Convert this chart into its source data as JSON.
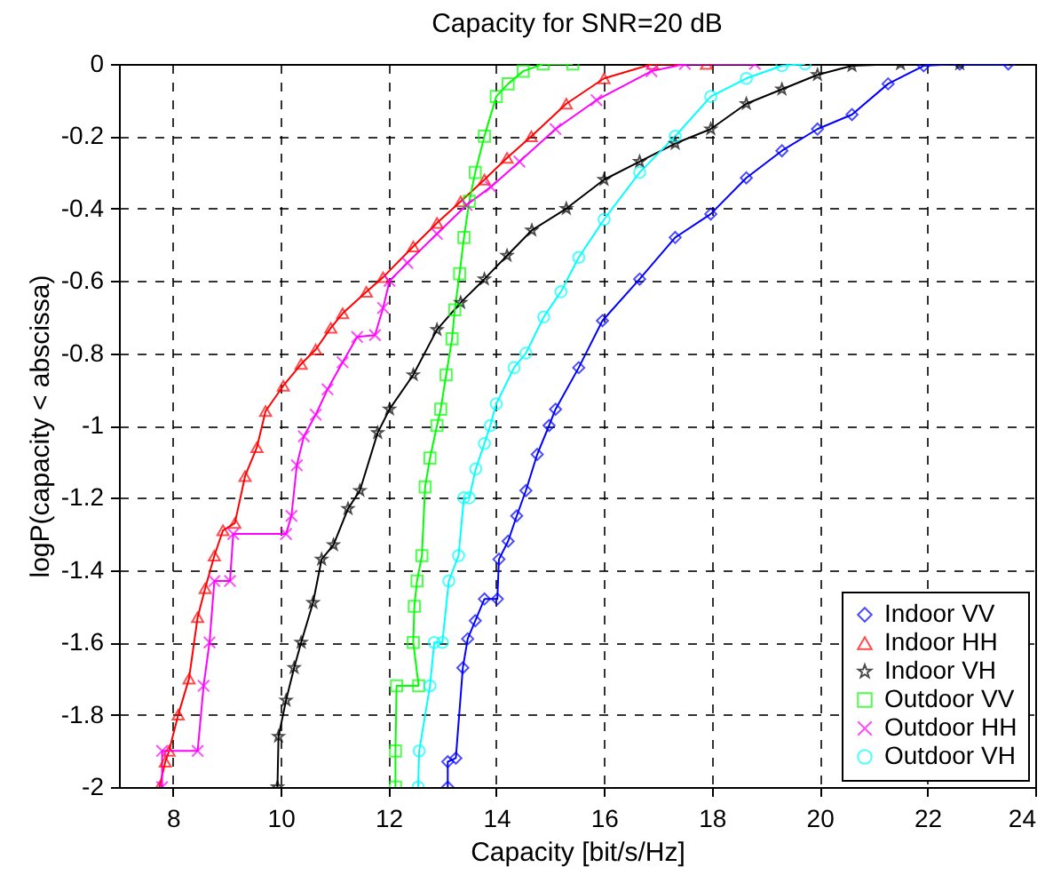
{
  "chart_data": {
    "type": "line",
    "title": "Capacity for SNR=20 dB",
    "xlabel": "Capacity [bit/s/Hz]",
    "ylabel": "logP(capacity < abscissa)",
    "xlim": [
      7,
      24
    ],
    "ylim": [
      -2,
      0
    ],
    "xticks": [
      8,
      10,
      12,
      14,
      16,
      18,
      20,
      22,
      24
    ],
    "yticks": [
      -2,
      -1.8,
      -1.6,
      -1.4,
      -1.2,
      -1,
      -0.8,
      -0.6,
      -0.4,
      -0.2,
      0
    ],
    "grid": true,
    "legend": "bottom right",
    "line_style": "solid",
    "series": [
      {
        "name": "Indoor VV",
        "color": "#0000ff",
        "marker": "diamond",
        "x": [
          13.1,
          13.1,
          13.25,
          13.38,
          13.47,
          13.61,
          13.78,
          14.02,
          14.05,
          14.22,
          14.38,
          14.55,
          14.76,
          14.98,
          15.1,
          15.53,
          15.97,
          16.66,
          17.32,
          17.98,
          18.64,
          19.3,
          19.96,
          20.6,
          21.27,
          21.93,
          22.6,
          23.5
        ],
        "values": [
          -2,
          -1.93,
          -1.92,
          -1.67,
          -1.59,
          -1.54,
          -1.48,
          -1.48,
          -1.37,
          -1.32,
          -1.25,
          -1.18,
          -1.08,
          -1.0,
          -0.955,
          -0.84,
          -0.71,
          -0.595,
          -0.48,
          -0.415,
          -0.315,
          -0.24,
          -0.18,
          -0.14,
          -0.055,
          -0.005,
          0,
          0
        ]
      },
      {
        "name": " Indoor HH",
        "color": "#ff0000",
        "marker": "triangle",
        "x": [
          7.75,
          7.86,
          7.93,
          8.1,
          8.3,
          8.46,
          8.6,
          8.77,
          8.93,
          9.15,
          9.34,
          9.56,
          9.72,
          10.05,
          10.38,
          10.65,
          10.93,
          11.15,
          11.59,
          11.9,
          12.46,
          12.9,
          13.34,
          13.78,
          14.2,
          14.65,
          15.3,
          16.0,
          16.9,
          17.9
        ],
        "values": [
          -2,
          -1.93,
          -1.9,
          -1.8,
          -1.7,
          -1.53,
          -1.45,
          -1.36,
          -1.29,
          -1.27,
          -1.14,
          -1.06,
          -0.96,
          -0.89,
          -0.83,
          -0.79,
          -0.73,
          -0.69,
          -0.63,
          -0.59,
          -0.505,
          -0.44,
          -0.38,
          -0.32,
          -0.26,
          -0.2,
          -0.11,
          -0.04,
          0,
          0
        ]
      },
      {
        "name": "Indoor VH",
        "color": "#000000",
        "marker": "star",
        "x": [
          9.94,
          9.96,
          10.1,
          10.25,
          10.38,
          10.6,
          10.76,
          10.98,
          11.25,
          11.47,
          11.8,
          12.02,
          12.46,
          12.9,
          13.34,
          13.78,
          14.2,
          14.66,
          15.3,
          16.0,
          16.66,
          17.32,
          17.98,
          18.64,
          19.3,
          19.96,
          20.6,
          21.5,
          22.6
        ],
        "values": [
          -2,
          -1.86,
          -1.76,
          -1.67,
          -1.6,
          -1.49,
          -1.37,
          -1.33,
          -1.23,
          -1.18,
          -1.02,
          -0.955,
          -0.86,
          -0.735,
          -0.66,
          -0.595,
          -0.53,
          -0.46,
          -0.4,
          -0.32,
          -0.27,
          -0.22,
          -0.18,
          -0.11,
          -0.07,
          -0.03,
          -0.005,
          0,
          0
        ]
      },
      {
        "name": "Outdoor VV",
        "color": "#00ff00",
        "marker": "square",
        "x": [
          12.13,
          12.13,
          12.15,
          12.56,
          12.46,
          12.48,
          12.53,
          12.62,
          12.68,
          12.77,
          12.9,
          12.97,
          13.07,
          13.18,
          13.23,
          13.32,
          13.4,
          13.5,
          13.61,
          13.78,
          14.0,
          14.22,
          14.5,
          14.87,
          15.42
        ],
        "values": [
          -2,
          -1.9,
          -1.72,
          -1.72,
          -1.6,
          -1.5,
          -1.43,
          -1.36,
          -1.17,
          -1.09,
          -1.0,
          -0.955,
          -0.86,
          -0.76,
          -0.68,
          -0.58,
          -0.48,
          -0.38,
          -0.3,
          -0.2,
          -0.09,
          -0.055,
          -0.02,
          0,
          0
        ]
      },
      {
        "name": "Outdoor HH",
        "color": "#ff00ff",
        "marker": "cross",
        "x": [
          7.8,
          7.8,
          8.46,
          8.57,
          8.68,
          8.77,
          9.06,
          9.12,
          10.1,
          10.2,
          10.3,
          10.43,
          10.65,
          10.87,
          11.15,
          11.42,
          11.75,
          11.9,
          12.02,
          12.35,
          12.9,
          13.45,
          13.9,
          14.43,
          15.1,
          15.86,
          16.88,
          17.5,
          18.8
        ],
        "values": [
          -2,
          -1.9,
          -1.9,
          -1.72,
          -1.6,
          -1.43,
          -1.43,
          -1.3,
          -1.3,
          -1.25,
          -1.11,
          -1.03,
          -0.97,
          -0.9,
          -0.825,
          -0.755,
          -0.75,
          -0.675,
          -0.6,
          -0.55,
          -0.47,
          -0.39,
          -0.34,
          -0.27,
          -0.18,
          -0.1,
          -0.02,
          0,
          0
        ]
      },
      {
        "name": "Outdoor VH",
        "color": "#00ffff",
        "marker": "circle",
        "x": [
          12.55,
          12.57,
          12.77,
          12.85,
          13.0,
          13.12,
          13.3,
          13.4,
          13.5,
          13.62,
          13.78,
          13.89,
          14.0,
          14.33,
          14.55,
          14.88,
          15.2,
          15.53,
          16.0,
          16.66,
          17.32,
          17.98,
          18.64,
          19.3,
          19.73
        ],
        "values": [
          -2,
          -1.9,
          -1.72,
          -1.6,
          -1.6,
          -1.43,
          -1.36,
          -1.2,
          -1.2,
          -1.12,
          -1.05,
          -1.0,
          -0.94,
          -0.84,
          -0.8,
          -0.7,
          -0.63,
          -0.535,
          -0.43,
          -0.3,
          -0.2,
          -0.09,
          -0.04,
          -0.005,
          0
        ]
      }
    ]
  }
}
